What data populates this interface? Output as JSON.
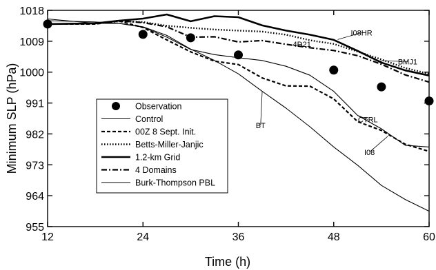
{
  "chart_data": {
    "type": "line",
    "title": "",
    "xlabel": "Time (h)",
    "ylabel": "Minimum SLP  (hPa)",
    "xlim": [
      12,
      60
    ],
    "ylim": [
      955,
      1018
    ],
    "xticks": [
      12,
      24,
      36,
      48,
      60
    ],
    "xtick_labels": [
      "12",
      "24",
      "36",
      "48",
      "60"
    ],
    "yticks": [
      955,
      964,
      973,
      982,
      991,
      1000,
      1009,
      1018
    ],
    "ytick_labels": [
      "955",
      "964",
      "973",
      "982",
      "991",
      "1000",
      "1009",
      "1018"
    ],
    "grid": false,
    "legend_position": "lower-left",
    "observations": {
      "name": "Observation",
      "x": [
        12,
        24,
        30,
        36,
        48,
        54,
        60
      ],
      "y": [
        1014,
        1011,
        1010,
        1005,
        1000.6,
        995.7,
        991.6
      ]
    },
    "series": [
      {
        "name": "Control",
        "style": "thin-solid",
        "x": [
          12,
          18,
          21,
          24,
          27,
          30,
          33,
          36,
          39,
          42,
          45,
          48,
          51,
          54,
          57,
          60
        ],
        "y": [
          1015,
          1014.6,
          1014.2,
          1013.1,
          1010.2,
          1006.6,
          1005.1,
          1004.2,
          1003.4,
          1001.7,
          999.1,
          994.4,
          987.4,
          983.5,
          978.7,
          978.2
        ]
      },
      {
        "name": "00Z 8 Sept. Init.",
        "style": "dashed",
        "x": [
          12,
          18,
          21,
          24,
          27,
          30,
          33,
          36,
          39,
          42,
          45,
          48,
          51,
          54,
          57,
          60
        ],
        "y": [
          1014,
          1014,
          1014.9,
          1013,
          1009.4,
          1005.9,
          1003.2,
          1002.2,
          998.3,
          996,
          995.9,
          992.2,
          985.6,
          983,
          979,
          976.9
        ]
      },
      {
        "name": "Betts-Miller-Janjic",
        "style": "dotted",
        "x": [
          12,
          18,
          21,
          24,
          27,
          30,
          33,
          36,
          39,
          42,
          45,
          48,
          51,
          54,
          57,
          60
        ],
        "y": [
          1014,
          1014.1,
          1014.8,
          1014.6,
          1013.5,
          1012.9,
          1012.4,
          1012.1,
          1011.8,
          1010.9,
          1009.3,
          1008.2,
          1006,
          1003.7,
          1001.2,
          999.5
        ]
      },
      {
        "name": "1.2-km Grid",
        "style": "thick-solid",
        "x": [
          12,
          18,
          21,
          24,
          27,
          30,
          33,
          36,
          39,
          42,
          45,
          48,
          51,
          54,
          57,
          60
        ],
        "y": [
          1014,
          1014.2,
          1015,
          1015.6,
          1016.8,
          1014.8,
          1016.3,
          1016,
          1013.6,
          1012.1,
          1010.9,
          1009.4,
          1006.2,
          1002.8,
          1000.5,
          999
        ]
      },
      {
        "name": "4 Domains",
        "style": "dash-dot",
        "x": [
          12,
          18,
          21,
          24,
          27,
          30,
          33,
          36,
          39,
          42,
          45,
          48,
          51,
          54,
          57,
          60
        ],
        "y": [
          1014,
          1014.2,
          1015,
          1014.4,
          1013.2,
          1010.2,
          1010.3,
          1008.8,
          1009.2,
          1008.1,
          1007.1,
          1006.3,
          1004.8,
          1002.3,
          999.2,
          997.1
        ]
      },
      {
        "name": "Burk-Thompson PBL",
        "style": "thin-solid",
        "x": [
          12,
          18,
          21,
          24,
          27,
          30,
          33,
          36,
          39,
          42,
          45,
          48,
          51,
          54,
          57,
          60
        ],
        "y": [
          1015.5,
          1014.2,
          1014.2,
          1013.2,
          1010.7,
          1006.7,
          1003.4,
          999.5,
          994.4,
          989.5,
          984.1,
          978.2,
          972.9,
          967,
          962.9,
          959.5
        ]
      }
    ],
    "annotations": [
      {
        "text": "I08HR",
        "x": 51.5,
        "y": 1011.5,
        "to_x": 48.5,
        "to_y": 1009.5
      },
      {
        "text": "4D21",
        "x": 44,
        "y": 1008.2,
        "to_x": 43,
        "to_y": 1007.7
      },
      {
        "text": "BMJ1",
        "x": 57.3,
        "y": 1003.1,
        "to_x": 53.5,
        "to_y": 1003.3
      },
      {
        "text": "CTRL",
        "x": 52.3,
        "y": 986.2,
        "to_x": 51,
        "to_y": 987.4
      },
      {
        "text": "BT",
        "x": 38.8,
        "y": 984.5,
        "to_x": 39,
        "to_y": 994.4
      },
      {
        "text": "I08",
        "x": 52.5,
        "y": 976.7,
        "to_x": 54.8,
        "to_y": 981.3
      }
    ]
  }
}
